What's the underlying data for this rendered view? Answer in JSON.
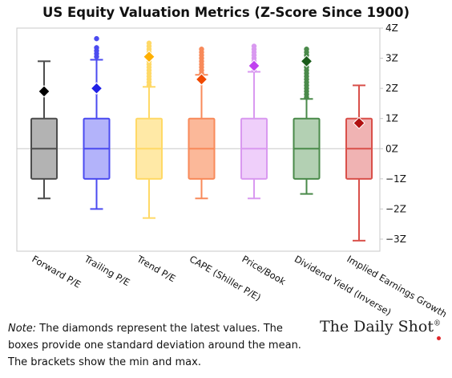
{
  "chart_data": {
    "type": "boxplot",
    "title": "US Equity Valuation Metrics (Z-Score Since 1900)",
    "y_axis": {
      "position": "right",
      "ylim": [
        -3.4,
        4.0
      ],
      "ticks": [
        {
          "value": 4,
          "label": "4Z"
        },
        {
          "value": 3,
          "label": "3Z"
        },
        {
          "value": 2,
          "label": "2Z"
        },
        {
          "value": 1,
          "label": "1Z"
        },
        {
          "value": 0,
          "label": "0Z"
        },
        {
          "value": -1,
          "label": "−1Z"
        },
        {
          "value": -2,
          "label": "−2Z"
        },
        {
          "value": -3,
          "label": "−3Z"
        }
      ]
    },
    "grid": false,
    "zero_line": true,
    "series": [
      {
        "name": "Forward P/E",
        "color": "#4d4d4d",
        "fill": "#b3b3b3",
        "min": -1.65,
        "q1": -1.0,
        "median": 0.0,
        "q3": 1.0,
        "max": 2.9,
        "outliers": [],
        "latest": 1.9,
        "latest_color": "#000000"
      },
      {
        "name": "Trailing P/E",
        "color": "#4b4bf0",
        "fill": "#b3b3fa",
        "min": -2.0,
        "q1": -1.0,
        "median": 0.0,
        "q3": 1.0,
        "max": 2.95,
        "outliers": [
          3.05,
          3.15,
          3.25,
          3.35,
          3.65
        ],
        "latest": 2.0,
        "latest_color": "#2020e6"
      },
      {
        "name": "Trend P/E",
        "color": "#ffd966",
        "fill": "#ffe9a6",
        "min": -2.3,
        "q1": -1.0,
        "median": 0.0,
        "q3": 1.0,
        "max": 2.05,
        "outliers": [
          2.1,
          2.2,
          2.3,
          2.4,
          2.5,
          2.6,
          2.7,
          2.8,
          2.9,
          3.0,
          3.1,
          3.2,
          3.3,
          3.4,
          3.5
        ],
        "latest": 3.05,
        "latest_color": "#ffb000"
      },
      {
        "name": "CAPE (Shiller P/E)",
        "color": "#f88a5a",
        "fill": "#fbb899",
        "min": -1.65,
        "q1": -1.0,
        "median": 0.0,
        "q3": 1.0,
        "max": 2.45,
        "outliers": [
          2.5,
          2.6,
          2.7,
          2.8,
          2.9,
          3.0,
          3.1,
          3.2,
          3.3
        ],
        "latest": 2.3,
        "latest_color": "#f04a00"
      },
      {
        "name": "Price/Book",
        "color": "#d999f0",
        "fill": "#efcffa",
        "min": -1.65,
        "q1": -1.0,
        "median": 0.0,
        "q3": 1.0,
        "max": 2.55,
        "outliers": [
          2.6,
          2.7,
          2.8,
          2.9,
          3.0,
          3.1,
          3.2,
          3.3,
          3.4
        ],
        "latest": 2.75,
        "latest_color": "#c040f0"
      },
      {
        "name": "Dividend Yield (Inverse)",
        "color": "#4a8a4a",
        "fill": "#b3d0b3",
        "min": -1.5,
        "q1": -1.0,
        "median": 0.0,
        "q3": 1.0,
        "max": 1.65,
        "outliers": [
          1.7,
          1.8,
          1.9,
          2.0,
          2.1,
          2.2,
          2.3,
          2.4,
          2.5,
          2.6,
          2.7,
          2.8,
          2.9,
          3.0,
          3.1,
          3.2,
          3.3
        ],
        "latest": 2.9,
        "latest_color": "#1a5c1a"
      },
      {
        "name": "Implied Earnings Growth",
        "color": "#d9504a",
        "fill": "#f0b3b3",
        "min": -3.05,
        "q1": -1.0,
        "median": 0.0,
        "q3": 1.0,
        "max": 2.1,
        "outliers": [],
        "latest": 0.85,
        "latest_color": "#b01010"
      }
    ]
  },
  "note": {
    "lead": "Note:",
    "text": " The diamonds represent the latest values. The boxes provide one standard deviation around the mean. The brackets show the min and max."
  },
  "brand": {
    "name": "The Daily Shot",
    "mark": "®"
  }
}
